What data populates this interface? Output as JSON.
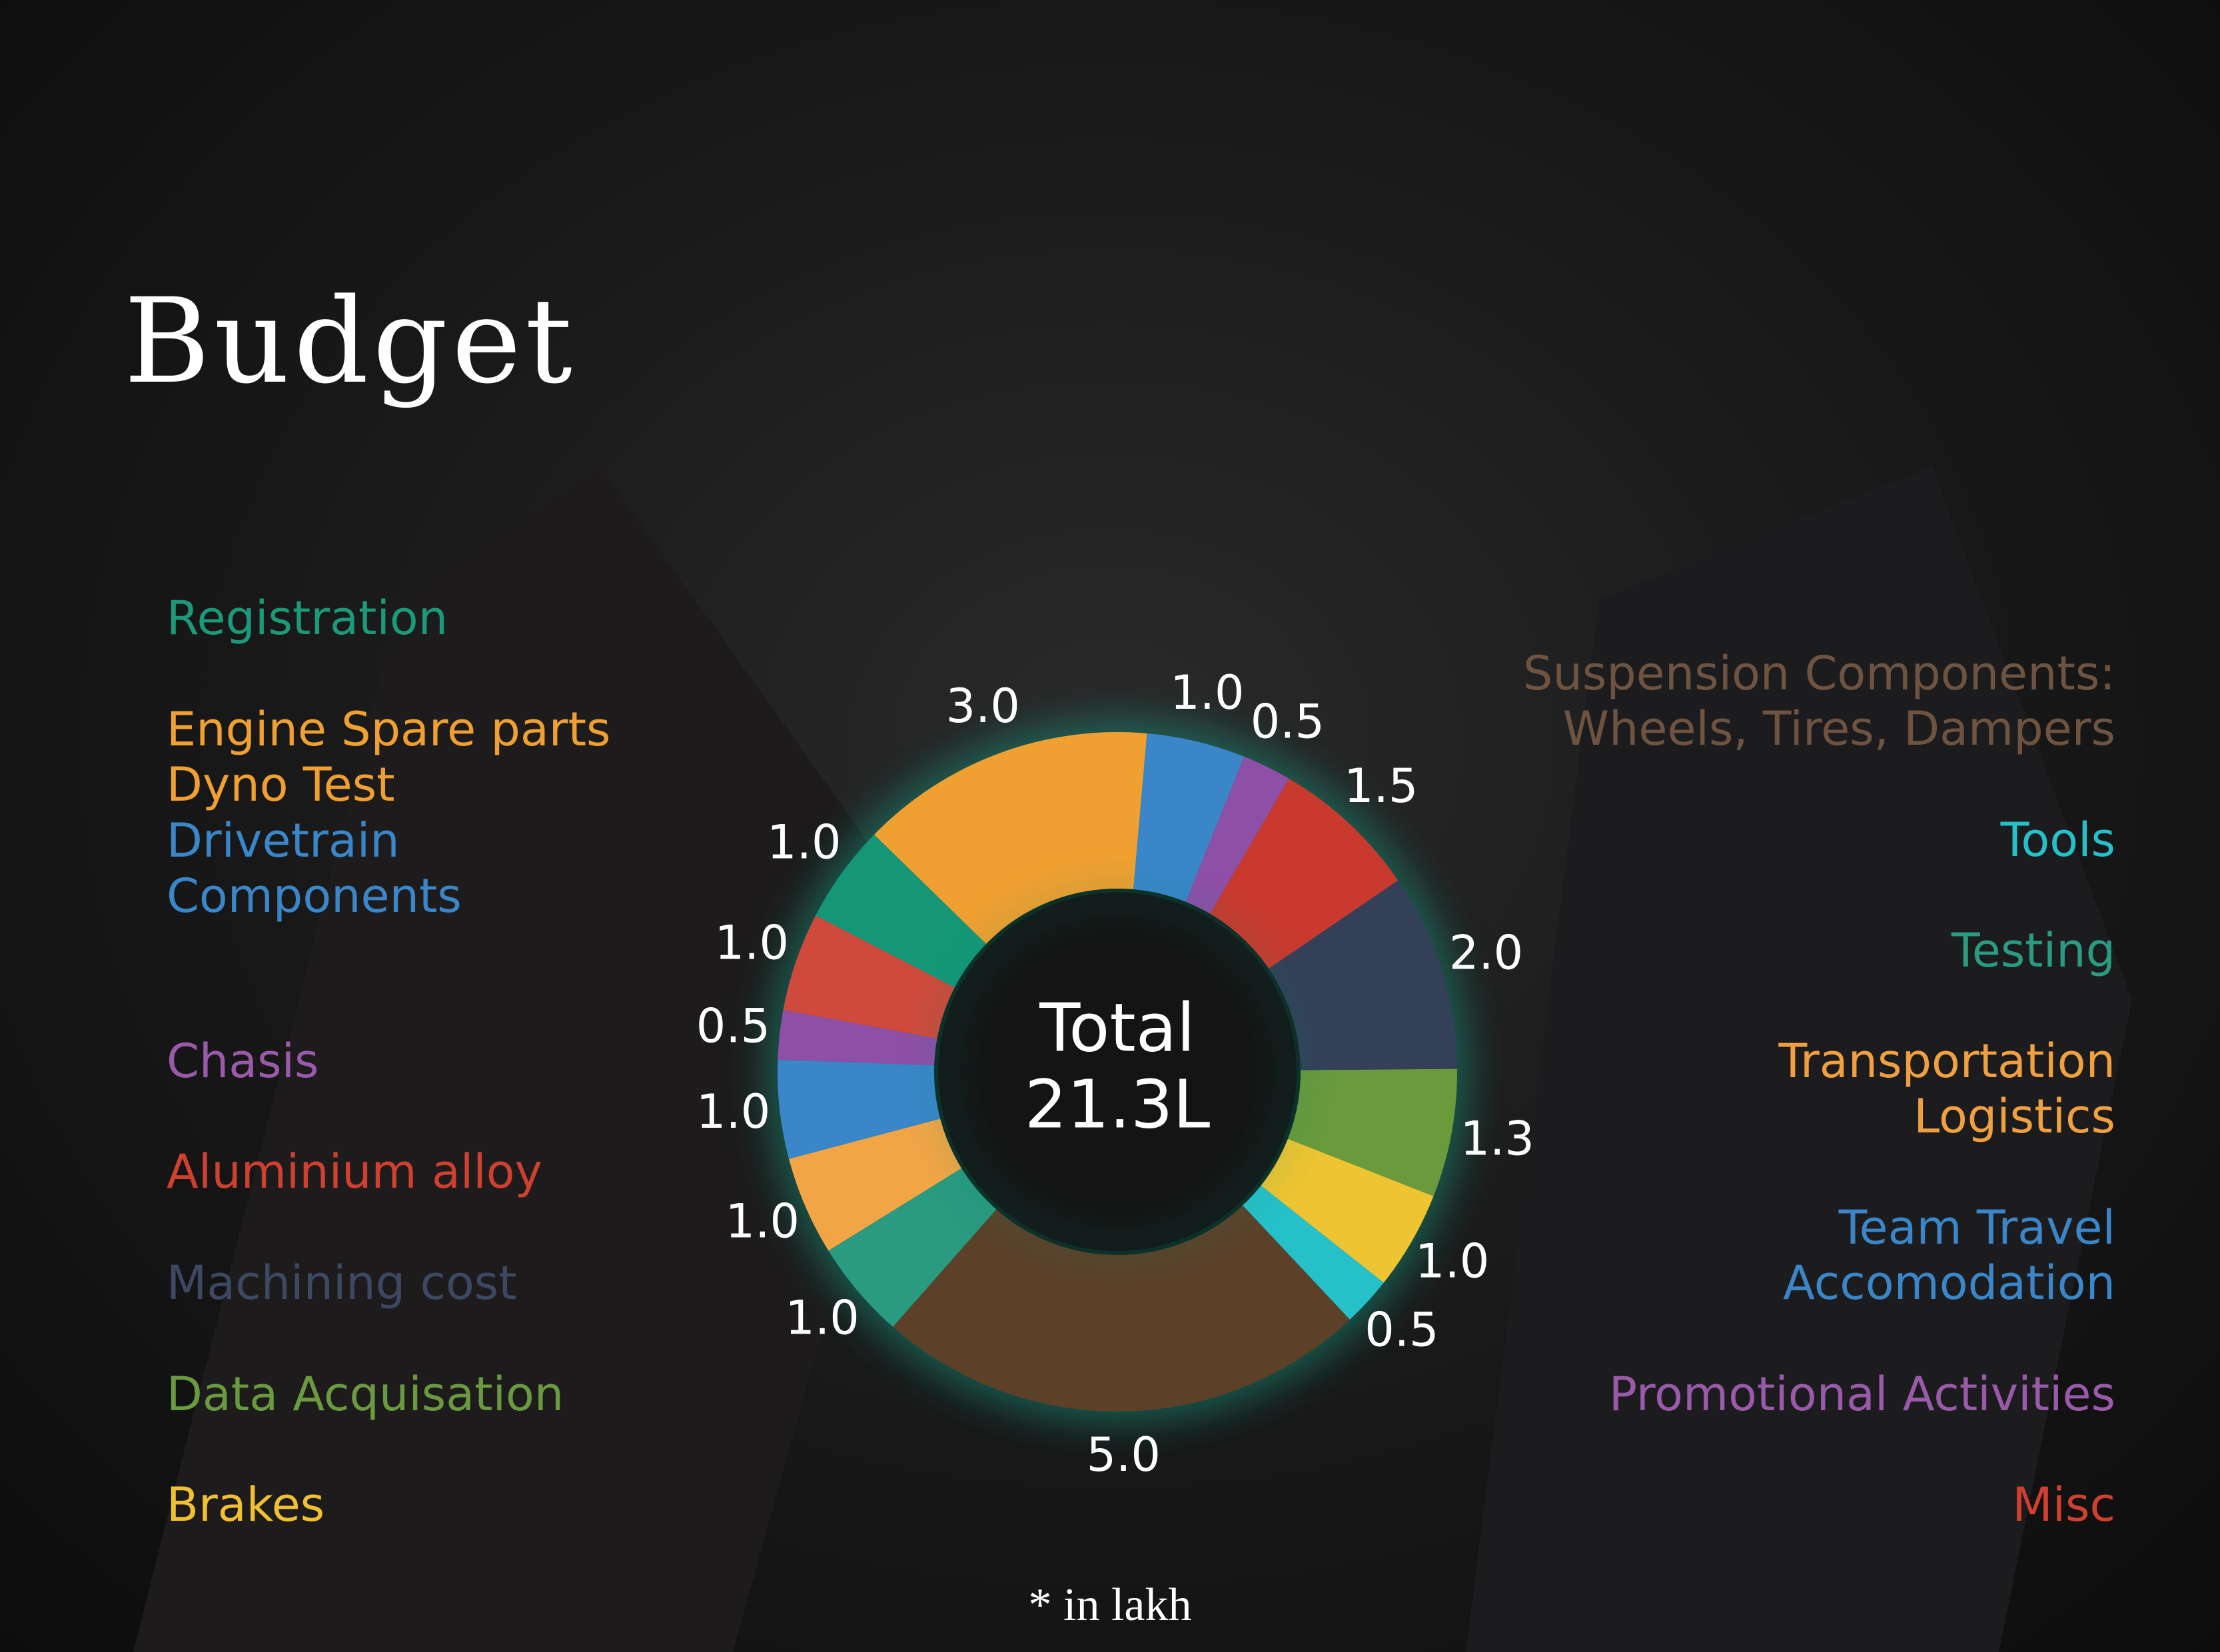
{
  "chart_data": {
    "type": "pie",
    "title": "Budget",
    "center_label": [
      "Total",
      "21.3L"
    ],
    "note": "* in lakh",
    "values": [
      1.0,
      0.5,
      1.5,
      2.0,
      1.3,
      1.0,
      0.5,
      5.0,
      1.0,
      1.0,
      1.0,
      0.5,
      1.0,
      1.0,
      3.0
    ],
    "value_labels": [
      "1.0",
      "0.5",
      "1.5",
      "2.0",
      "1.3",
      "1.0",
      "0.5",
      "5.0",
      "1.0",
      "1.0",
      "1.0",
      "0.5",
      "1.0",
      "1.0",
      "3.0"
    ],
    "colors": [
      "#3a86c8",
      "#8e4fa6",
      "#c9392e",
      "#343f58",
      "#6a9a3c",
      "#eec432",
      "#26c0c8",
      "#5c4028",
      "#2a9a80",
      "#f2a545",
      "#3a86c8",
      "#8e4fa6",
      "#cf4a3c",
      "#159777",
      "#f0a030"
    ],
    "legend": [
      {
        "label": "Registration",
        "color": "#1a9a78"
      },
      {
        "label": "Engine Spare parts\nDyno Test",
        "color": "#f0a030"
      },
      {
        "label": "Drivetrain\nComponents",
        "color": "#3a86c8"
      },
      {
        "label": "Chasis",
        "color": "#9a5aaa"
      },
      {
        "label": "Aluminium alloy",
        "color": "#d04030"
      },
      {
        "label": "Machining cost",
        "color": "#3d4862"
      },
      {
        "label": "Data Acquisation",
        "color": "#6a9a40"
      },
      {
        "label": "Brakes",
        "color": "#f0c030"
      },
      {
        "label": "Suspension Components:\nWheels, Tires, Dampers",
        "color": "#6e5440"
      },
      {
        "label": "Tools",
        "color": "#26c0c8"
      },
      {
        "label": "Testing",
        "color": "#2a9a80"
      },
      {
        "label": "Transportation\nLogistics",
        "color": "#f0a040"
      },
      {
        "label": "Team Travel\nAccomodation",
        "color": "#3a86c8"
      },
      {
        "label": "Promotional Activities",
        "color": "#9a5aaa"
      },
      {
        "label": "Misc",
        "color": "#d04030"
      }
    ]
  }
}
